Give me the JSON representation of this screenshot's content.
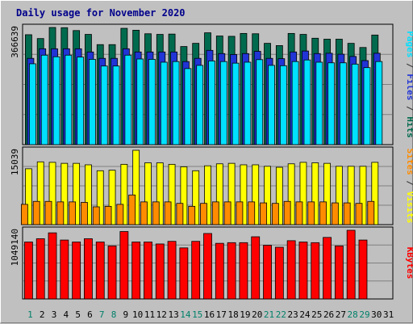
{
  "chart_data": {
    "type": "bar",
    "title": "Daily usage for November 2020",
    "categories": [
      "1",
      "2",
      "3",
      "4",
      "5",
      "6",
      "7",
      "8",
      "9",
      "10",
      "11",
      "12",
      "13",
      "14",
      "15",
      "16",
      "17",
      "18",
      "19",
      "20",
      "21",
      "22",
      "23",
      "24",
      "25",
      "26",
      "27",
      "28",
      "29",
      "30",
      "31"
    ],
    "weekend_days": [
      "1",
      "7",
      "8",
      "14",
      "15",
      "21",
      "22",
      "28",
      "29"
    ],
    "panels": [
      {
        "name": "hits-files-pages",
        "ymax_label": "366639",
        "ylim": [
          0,
          366639
        ],
        "series": [
          {
            "name": "Hits",
            "color": "#006a4e",
            "values": [
              344000,
              332000,
              366639,
              366000,
              357000,
              345000,
              313000,
              313000,
              364000,
              358000,
              347000,
              345000,
              346000,
              307000,
              317000,
              350000,
              340000,
              339000,
              348000,
              347000,
              317000,
              310000,
              348000,
              345000,
              333000,
              330000,
              330000,
              317000,
              304000,
              343000,
              null
            ]
          },
          {
            "name": "Files",
            "color": "#2134d6",
            "values": [
              270000,
              300000,
              300000,
              300000,
              300000,
              290000,
              270000,
              270000,
              300000,
              290000,
              290000,
              290000,
              290000,
              260000,
              270000,
              295000,
              285000,
              282000,
              285000,
              292000,
              270000,
              269000,
              290000,
              293000,
              285000,
              286000,
              283000,
              276000,
              263000,
              286000,
              null
            ]
          },
          {
            "name": "Pages",
            "color": "#00e0ff",
            "values": [
              253000,
              280000,
              275000,
              280000,
              274000,
              267000,
              246000,
              246000,
              280000,
              268000,
              267000,
              258000,
              260000,
              238000,
              248000,
              262000,
              260000,
              255000,
              258000,
              266000,
              248000,
              247000,
              260000,
              265000,
              258000,
              256000,
              256000,
              252000,
              241000,
              260000,
              null
            ]
          }
        ]
      },
      {
        "name": "visits-sites",
        "ymax_label": "15039",
        "ylim": [
          0,
          15039
        ],
        "series": [
          {
            "name": "Visits",
            "color": "#ffff00",
            "values": [
              11300,
              12700,
              12600,
              12400,
              12400,
              12100,
              10900,
              11000,
              12200,
              15039,
              12500,
              12500,
              12200,
              11700,
              10900,
              11900,
              12300,
              12400,
              12100,
              12100,
              11800,
              11600,
              12300,
              12600,
              12500,
              12400,
              11800,
              11800,
              11800,
              12600,
              null
            ]
          },
          {
            "name": "Sites",
            "color": "#ff8c00",
            "values": [
              4100,
              4700,
              4700,
              4600,
              4600,
              4500,
              3600,
              3700,
              4100,
              6000,
              4600,
              4600,
              4600,
              4300,
              3700,
              4300,
              4600,
              4600,
              4600,
              4600,
              4400,
              4300,
              4700,
              4600,
              4600,
              4600,
              4400,
              4400,
              4300,
              4700,
              null
            ]
          }
        ]
      },
      {
        "name": "kbytes",
        "ymax_label": "1049140",
        "ylim": [
          0,
          1049140
        ],
        "series": [
          {
            "name": "KBytes",
            "color": "#ff0000",
            "values": [
              870000,
              920000,
              1010000,
              900000,
              870000,
              920000,
              870000,
              810000,
              1030000,
              870000,
              870000,
              840000,
              880000,
              780000,
              880000,
              1000000,
              850000,
              860000,
              860000,
              950000,
              820000,
              790000,
              890000,
              870000,
              860000,
              940000,
              810000,
              1049140,
              900000,
              null,
              null
            ]
          }
        ]
      }
    ],
    "right_labels": [
      {
        "panel": "hits-files-pages",
        "parts": [
          {
            "text": "Pages",
            "color": "#00e0ff"
          },
          {
            "text": " / ",
            "color": "#2f2f2f"
          },
          {
            "text": "Files",
            "color": "#2134d6"
          },
          {
            "text": " / ",
            "color": "#2f2f2f"
          },
          {
            "text": "Hits",
            "color": "#006a4e"
          }
        ]
      },
      {
        "panel": "visits-sites",
        "parts": [
          {
            "text": "Sites",
            "color": "#ff8c00"
          },
          {
            "text": " / ",
            "color": "#2f2f2f"
          },
          {
            "text": "Visits",
            "color": "#ffff00"
          }
        ]
      },
      {
        "panel": "kbytes",
        "parts": [
          {
            "text": "KBytes",
            "color": "#ff0000"
          }
        ]
      }
    ],
    "colors": {
      "background": "#c0c0c0",
      "title": "#00008b",
      "weekday_tick": "#000000",
      "weekend_tick": "#00806a",
      "grid": "#808080"
    },
    "grid": true
  }
}
